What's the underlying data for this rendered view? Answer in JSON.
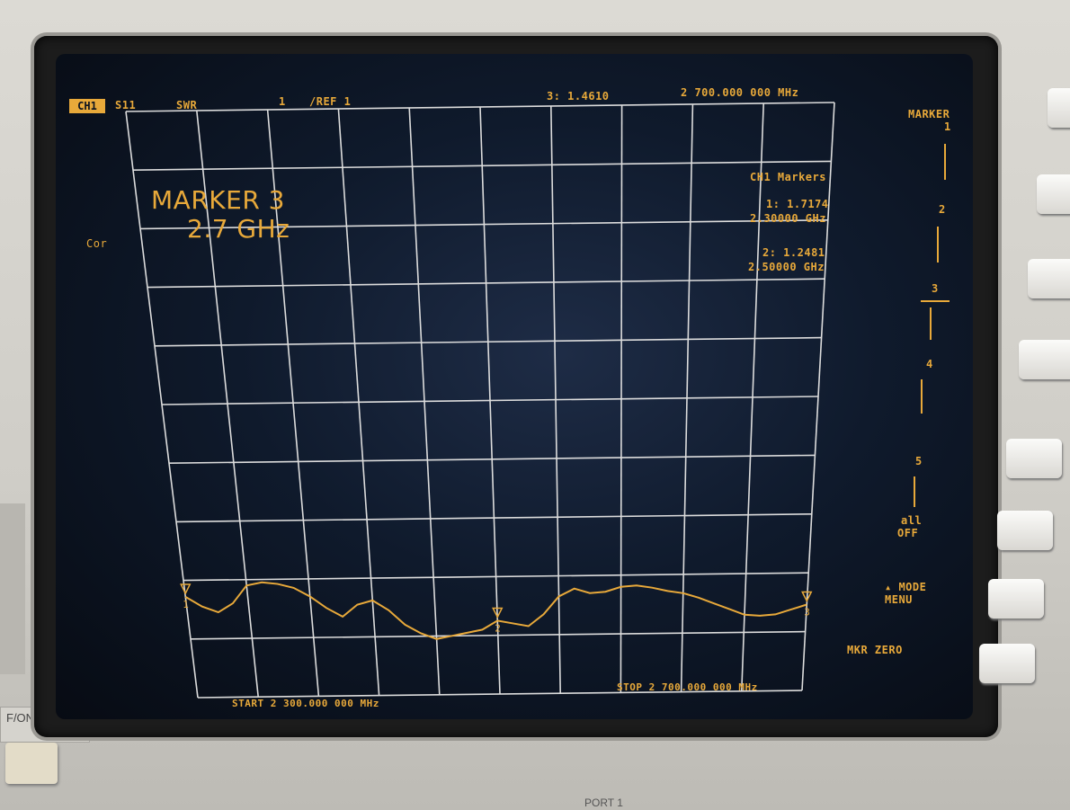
{
  "header": {
    "channel": "CH1",
    "param": "S11",
    "format": "SWR",
    "scale": "1",
    "ref": "/REF 1",
    "active_marker_readout": "3: 1.4610",
    "active_marker_freq": "2 700.000 000 MHz"
  },
  "marker_banner": {
    "line1": "MARKER 3",
    "line2": "2.7 GHz"
  },
  "cor_label": "Cor",
  "markers_panel": {
    "title": "CH1 Markers",
    "m1_value": "1: 1.7174",
    "m1_freq": "2.30000 GHz",
    "m2_value": "2: 1.2481",
    "m2_freq": "2.50000 GHz"
  },
  "footer": {
    "start": "START 2 300.000 000 MHz",
    "stop": "STOP 2 700.000 000 MHz"
  },
  "softkeys": {
    "title": "MARKER",
    "k1": "1",
    "k2": "2",
    "k3": "3",
    "k4": "4",
    "k5": "5",
    "k6_line1": "all",
    "k6_line2": "OFF",
    "k7_line1": "MODE",
    "k7_line2": "MENU",
    "k8": "MKR ZERO"
  },
  "marker_labels": {
    "m1": "1",
    "m2": "2",
    "m3": "3"
  },
  "panel": {
    "power_label": "F/ON",
    "port_label": "PORT 1"
  },
  "colors": {
    "trace": "#e8a93a",
    "grid": "#dcdcdc",
    "text": "#e8a93a"
  },
  "chart_data": {
    "type": "line",
    "xlabel": "",
    "ylabel": "",
    "x_unit": "MHz",
    "xlim": [
      2300,
      2700
    ],
    "ylim": [
      0,
      10
    ],
    "grid": true,
    "series": [
      {
        "x": [
          2300,
          2310,
          2320,
          2330,
          2340,
          2350,
          2360,
          2370,
          2380,
          2390,
          2400,
          2410,
          2420,
          2430,
          2440,
          2450,
          2460,
          2470,
          2480,
          2490,
          2500,
          2510,
          2520,
          2530,
          2540,
          2550,
          2560,
          2570,
          2580,
          2590,
          2600,
          2610,
          2620,
          2630,
          2640,
          2650,
          2660,
          2670,
          2680,
          2690,
          2700
        ],
        "values": [
          1.72,
          1.55,
          1.45,
          1.6,
          1.9,
          1.95,
          1.92,
          1.85,
          1.7,
          1.5,
          1.35,
          1.55,
          1.62,
          1.45,
          1.2,
          1.05,
          0.95,
          1.0,
          1.05,
          1.1,
          1.25,
          1.2,
          1.15,
          1.35,
          1.65,
          1.78,
          1.7,
          1.72,
          1.8,
          1.82,
          1.78,
          1.72,
          1.68,
          1.6,
          1.5,
          1.4,
          1.3,
          1.28,
          1.3,
          1.38,
          1.46
        ]
      }
    ],
    "markers": [
      {
        "label": "1",
        "x": 2300,
        "value": 1.7174
      },
      {
        "label": "2",
        "x": 2500,
        "value": 1.2481
      },
      {
        "label": "3",
        "x": 2700,
        "value": 1.461
      }
    ]
  }
}
